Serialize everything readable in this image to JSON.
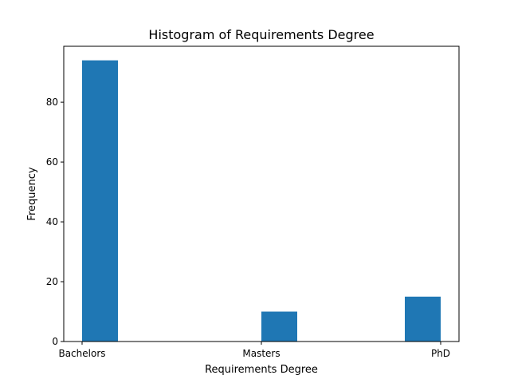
{
  "chart_data": {
    "type": "bar",
    "title": "Histogram of Requirements Degree",
    "xlabel": "Requirements Degree",
    "ylabel": "Frequency",
    "categories": [
      "Bachelors",
      "Masters",
      "PhD"
    ],
    "values": [
      94,
      10,
      15
    ],
    "ylim": [
      0,
      98.7
    ],
    "yticks": [
      0,
      20,
      40,
      60,
      80
    ],
    "grid": false,
    "bar_color": "#1f77b4"
  }
}
